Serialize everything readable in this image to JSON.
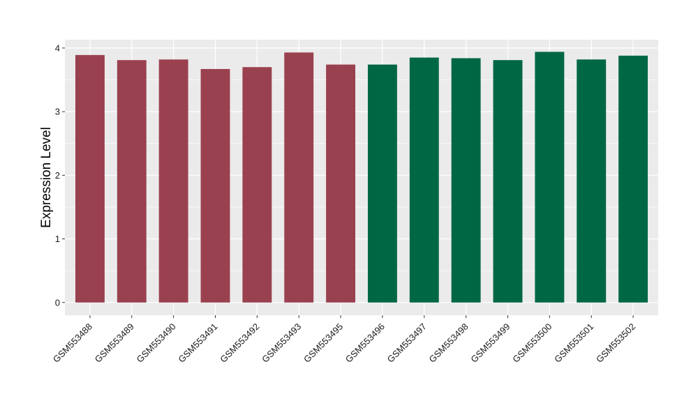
{
  "chart_data": {
    "type": "bar",
    "title": "",
    "xlabel": "",
    "ylabel": "Expression Level",
    "ylim": [
      -0.2,
      4.13
    ],
    "yticks": [
      0,
      1,
      2,
      3,
      4
    ],
    "grid": true,
    "legend": "none",
    "categories": [
      "GSM553488",
      "GSM553489",
      "GSM553490",
      "GSM553491",
      "GSM553492",
      "GSM553493",
      "GSM553495",
      "GSM553496",
      "GSM553497",
      "GSM553498",
      "GSM553499",
      "GSM553500",
      "GSM553501",
      "GSM553502"
    ],
    "values": [
      3.89,
      3.81,
      3.82,
      3.67,
      3.7,
      3.93,
      3.74,
      3.74,
      3.85,
      3.84,
      3.81,
      3.94,
      3.82,
      3.88
    ],
    "groups": [
      0,
      0,
      0,
      0,
      0,
      0,
      0,
      1,
      1,
      1,
      1,
      1,
      1,
      1
    ],
    "group_colors": [
      "#9a414f",
      "#006744"
    ],
    "panel_background": "#ebebeb",
    "grid_color": "#ffffff"
  }
}
